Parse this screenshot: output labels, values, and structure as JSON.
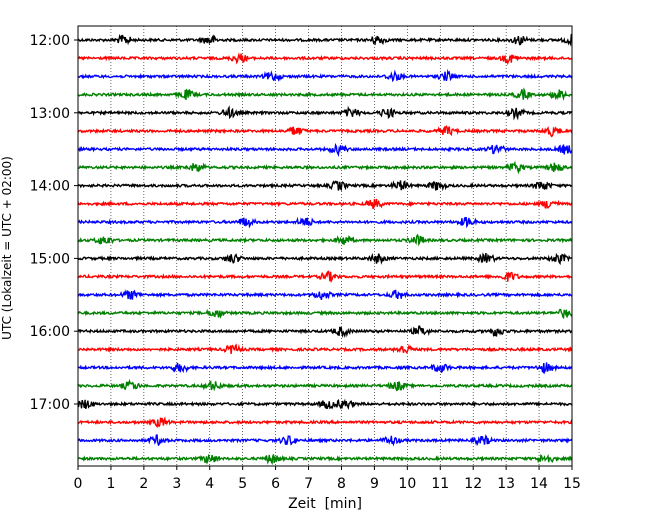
{
  "chart_data": {
    "type": "line",
    "title": "",
    "xlabel": "Zeit  [min]",
    "ylabel": "UTC (Lokalzeit = UTC + 02:00)",
    "xlim": [
      0,
      15
    ],
    "x_ticks": [
      "0",
      "1",
      "2",
      "3",
      "4",
      "5",
      "6",
      "7",
      "8",
      "9",
      "10",
      "11",
      "12",
      "13",
      "14",
      "15"
    ],
    "y_ticks": [
      "12:00",
      "13:00",
      "14:00",
      "15:00",
      "16:00",
      "17:00"
    ],
    "grid": "vertical dotted at each minute",
    "trace_interval_min": 15,
    "trace_colors": [
      "#000000",
      "#ff0000",
      "#0000ff",
      "#008000"
    ],
    "traces": [
      {
        "start": "12:00",
        "color": "#000000",
        "bursts": [
          1.4,
          4.0,
          9.1,
          13.4,
          15.0
        ]
      },
      {
        "start": "12:15",
        "color": "#ff0000",
        "bursts": [
          4.9,
          13.1
        ]
      },
      {
        "start": "12:30",
        "color": "#0000ff",
        "bursts": [
          5.9,
          9.6,
          11.2
        ]
      },
      {
        "start": "12:45",
        "color": "#008000",
        "bursts": [
          3.3,
          13.5,
          14.6
        ]
      },
      {
        "start": "13:00",
        "color": "#000000",
        "bursts": [
          4.6,
          8.3,
          9.4,
          13.3
        ]
      },
      {
        "start": "13:15",
        "color": "#ff0000",
        "bursts": [
          6.6,
          11.2,
          14.4
        ]
      },
      {
        "start": "13:30",
        "color": "#0000ff",
        "bursts": [
          7.9,
          12.7,
          14.8
        ]
      },
      {
        "start": "13:45",
        "color": "#008000",
        "bursts": [
          3.6,
          13.3,
          14.5
        ]
      },
      {
        "start": "14:00",
        "color": "#000000",
        "bursts": [
          7.9,
          9.8,
          10.9,
          14.1
        ]
      },
      {
        "start": "14:15",
        "color": "#ff0000",
        "bursts": [
          9.0,
          14.3
        ]
      },
      {
        "start": "14:30",
        "color": "#0000ff",
        "bursts": [
          5.1,
          6.9,
          11.8
        ]
      },
      {
        "start": "14:45",
        "color": "#008000",
        "bursts": [
          0.8,
          8.1,
          10.3
        ]
      },
      {
        "start": "15:00",
        "color": "#000000",
        "bursts": [
          4.7,
          9.1,
          12.4,
          14.6
        ]
      },
      {
        "start": "15:15",
        "color": "#ff0000",
        "bursts": [
          7.6,
          13.1
        ]
      },
      {
        "start": "15:30",
        "color": "#0000ff",
        "bursts": [
          1.6,
          7.4,
          9.7
        ]
      },
      {
        "start": "15:45",
        "color": "#008000",
        "bursts": [
          4.2,
          14.8
        ]
      },
      {
        "start": "16:00",
        "color": "#000000",
        "bursts": [
          8.0,
          10.4,
          12.7
        ]
      },
      {
        "start": "16:15",
        "color": "#ff0000",
        "bursts": [
          9.9,
          4.7
        ]
      },
      {
        "start": "16:30",
        "color": "#0000ff",
        "bursts": [
          3.1,
          11.0,
          14.2
        ]
      },
      {
        "start": "16:45",
        "color": "#008000",
        "bursts": [
          4.1,
          9.7,
          1.6
        ]
      },
      {
        "start": "17:00",
        "color": "#000000",
        "bursts": [
          0.2,
          7.6,
          8.1
        ]
      },
      {
        "start": "17:15",
        "color": "#ff0000",
        "bursts": [
          2.5
        ]
      },
      {
        "start": "17:30",
        "color": "#0000ff",
        "bursts": [
          2.4,
          6.4,
          9.5,
          12.3
        ]
      },
      {
        "start": "17:45",
        "color": "#008000",
        "bursts": [
          4.0,
          5.9,
          14.2
        ]
      }
    ]
  }
}
